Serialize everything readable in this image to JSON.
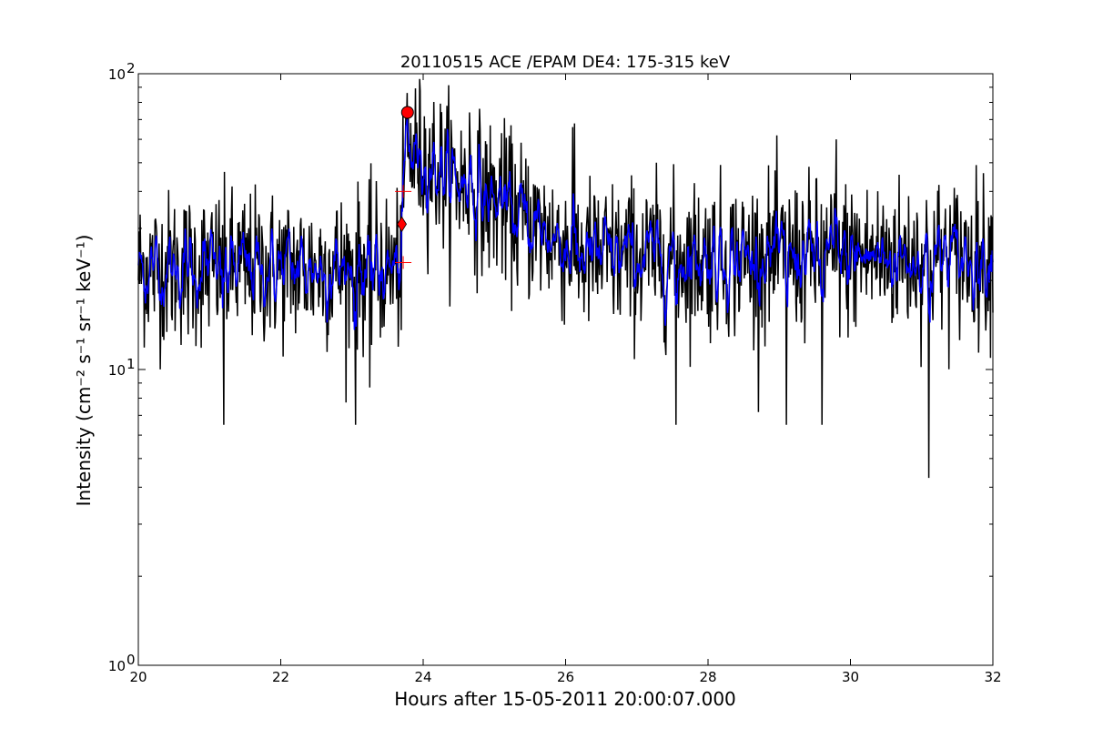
{
  "chart_data": {
    "type": "line",
    "title": "20110515 ACE /EPAM DE4: 175-315 keV",
    "xlabel": "Hours after 15-05-2011 20:00:07.000",
    "ylabel": "Intensity (cm⁻² s⁻¹ sr⁻¹ keV⁻¹)",
    "xlim": [
      20,
      32
    ],
    "ylim": [
      1,
      100
    ],
    "yscale": "log",
    "grid": false,
    "legend": "none",
    "x_ticks": [
      20,
      22,
      24,
      26,
      28,
      30,
      32
    ],
    "x_tick_labels": [
      "20",
      "22",
      "24",
      "26",
      "28",
      "30",
      "32"
    ],
    "y_ticks": [
      1,
      10,
      100
    ],
    "y_tick_labels": [
      "10",
      "10",
      "10"
    ],
    "y_tick_exponents": [
      "0",
      "1",
      "2"
    ],
    "series": [
      {
        "color": "#000000",
        "style": "raw",
        "baseline_before_onset": 22,
        "baseline_after_event": 24,
        "noise_factor": 1.35,
        "samples_per_hour": 120,
        "notable_dips": [
          [
            21.2,
            6.5
          ],
          [
            23.05,
            6.5
          ],
          [
            23.25,
            8.7
          ],
          [
            27.55,
            6.5
          ],
          [
            29.1,
            6.5
          ],
          [
            29.6,
            6.5
          ],
          [
            31.1,
            4.3
          ]
        ],
        "notable_spikes": [
          [
            24.65,
            74
          ],
          [
            26.1,
            66
          ],
          [
            29.8,
            60
          ],
          [
            25.1,
            63
          ]
        ]
      },
      {
        "color": "#0000ff",
        "style": "smoothed",
        "baseline_before_onset": 22,
        "baseline_after_event": 24
      }
    ],
    "event": {
      "onset_time": 23.7,
      "peak_time": 23.78,
      "peak_value": 74,
      "peak_plateau_value": 55,
      "decay_end_time": 26.3,
      "onset_marker": {
        "x": 23.7,
        "y": 31,
        "shape": "diamond",
        "color": "#ff0000"
      },
      "peak_marker": {
        "x": 23.78,
        "y": 74,
        "shape": "circle",
        "color": "#ff0000"
      },
      "error_markers": [
        {
          "x": 23.72,
          "y": 40,
          "shape": "plus",
          "color": "#ff0000"
        },
        {
          "x": 23.72,
          "y": 23,
          "shape": "plus",
          "color": "#ff0000"
        }
      ]
    }
  }
}
